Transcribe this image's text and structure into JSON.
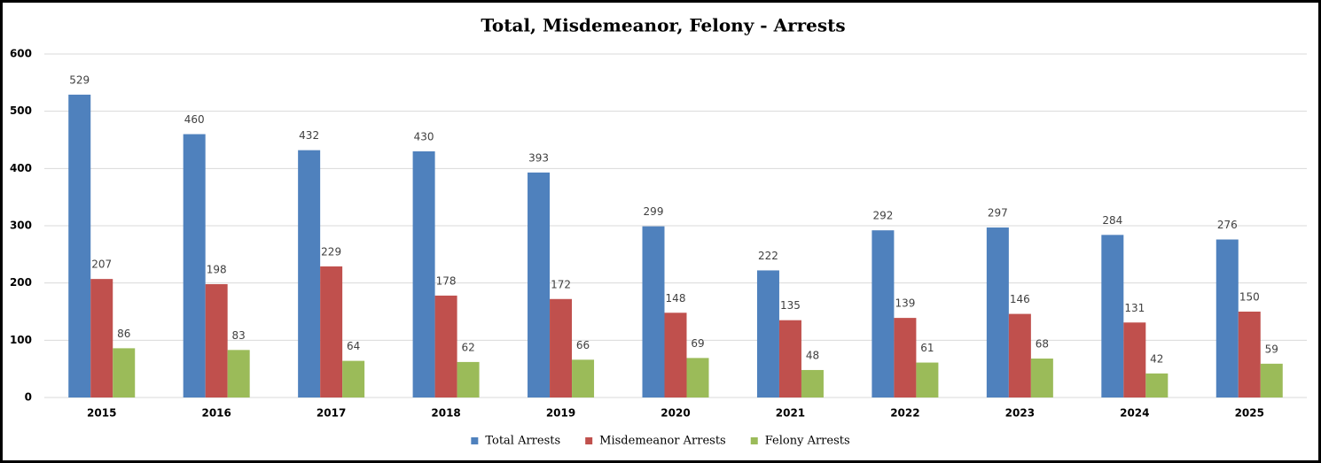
{
  "chart_data": {
    "type": "bar",
    "title": "Total, Misdemeanor, Felony - Arrests",
    "categories": [
      "2015",
      "2016",
      "2017",
      "2018",
      "2019",
      "2020",
      "2021",
      "2022",
      "2023",
      "2024",
      "2025"
    ],
    "series": [
      {
        "name": "Total Arrests",
        "color": "#4f81bd",
        "values": [
          529,
          460,
          432,
          430,
          393,
          299,
          222,
          292,
          297,
          284,
          276
        ]
      },
      {
        "name": "Misdemeanor Arrests",
        "color": "#c0504d",
        "values": [
          207,
          198,
          229,
          178,
          172,
          148,
          135,
          139,
          146,
          131,
          150
        ]
      },
      {
        "name": "Felony Arrests",
        "color": "#9bbb59",
        "values": [
          86,
          83,
          64,
          62,
          66,
          69,
          48,
          61,
          68,
          42,
          59
        ]
      }
    ],
    "ylim": [
      0,
      600
    ],
    "yticks": [
      0,
      100,
      200,
      300,
      400,
      500,
      600
    ],
    "grid": true,
    "legend": "bottom"
  }
}
